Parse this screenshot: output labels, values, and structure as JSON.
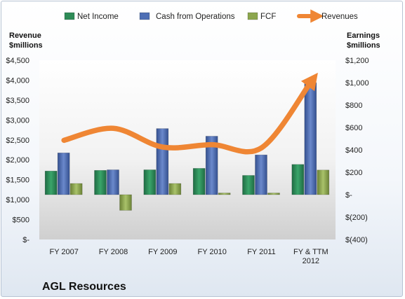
{
  "chart_data": {
    "type": "bar",
    "title": "AGL Resources",
    "categories": [
      "FY 2007",
      "FY 2008",
      "FY 2009",
      "FY 2010",
      "FY 2011",
      "FY & TTM 2012"
    ],
    "left_axis": {
      "label": [
        "Revenue",
        "$millions"
      ],
      "ylim": [
        0,
        4500
      ],
      "ticks": [
        0,
        500,
        1000,
        1500,
        2000,
        2500,
        3000,
        3500,
        4000,
        4500
      ],
      "tick_labels": [
        "$-",
        "$500",
        "$1,000",
        "$1,500",
        "$2,000",
        "$2,500",
        "$3,000",
        "$3,500",
        "$4,000",
        "$4,500"
      ]
    },
    "right_axis": {
      "label": [
        "Earnings",
        "$millions"
      ],
      "ylim": [
        -400,
        1200
      ],
      "ticks": [
        -400,
        -200,
        0,
        200,
        400,
        600,
        800,
        1000,
        1200
      ],
      "tick_labels": [
        "$(400)",
        "$(200)",
        "$-",
        "$200",
        "$400",
        "$600",
        "$800",
        "$1,000",
        "$1,200"
      ]
    },
    "series": [
      {
        "name": "Net Income",
        "axis": "right",
        "kind": "bar",
        "color": "#2e8b57",
        "values": [
          211,
          217,
          222,
          235,
          172,
          270
        ]
      },
      {
        "name": "Cash from Operations",
        "axis": "right",
        "kind": "bar",
        "color": "#4e6fb5",
        "values": [
          373,
          222,
          590,
          522,
          355,
          1000
        ]
      },
      {
        "name": "FCF",
        "axis": "right",
        "kind": "bar",
        "color": "#8ca64e",
        "values": [
          100,
          -140,
          100,
          15,
          15,
          220
        ]
      },
      {
        "name": "Revenues",
        "axis": "left",
        "kind": "line",
        "color": "#ef8634",
        "values": [
          2490,
          2790,
          2320,
          2380,
          2300,
          3950
        ]
      }
    ],
    "legend": "top",
    "grid": false
  }
}
